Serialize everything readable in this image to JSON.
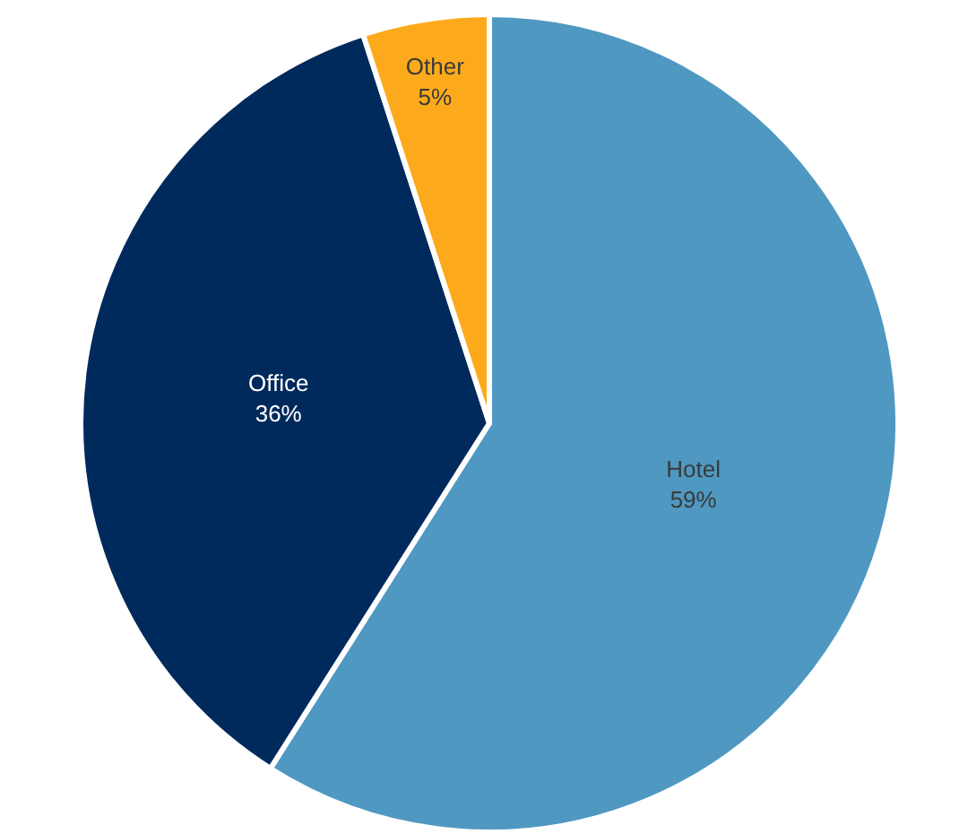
{
  "chart_data": {
    "type": "pie",
    "categories": [
      "Hotel",
      "Office",
      "Other"
    ],
    "values": [
      59,
      36,
      5
    ],
    "colors": [
      "#4f98c1",
      "#002a5c",
      "#fcaa1b"
    ],
    "value_labels": [
      "59%",
      "36%",
      "5%"
    ]
  }
}
